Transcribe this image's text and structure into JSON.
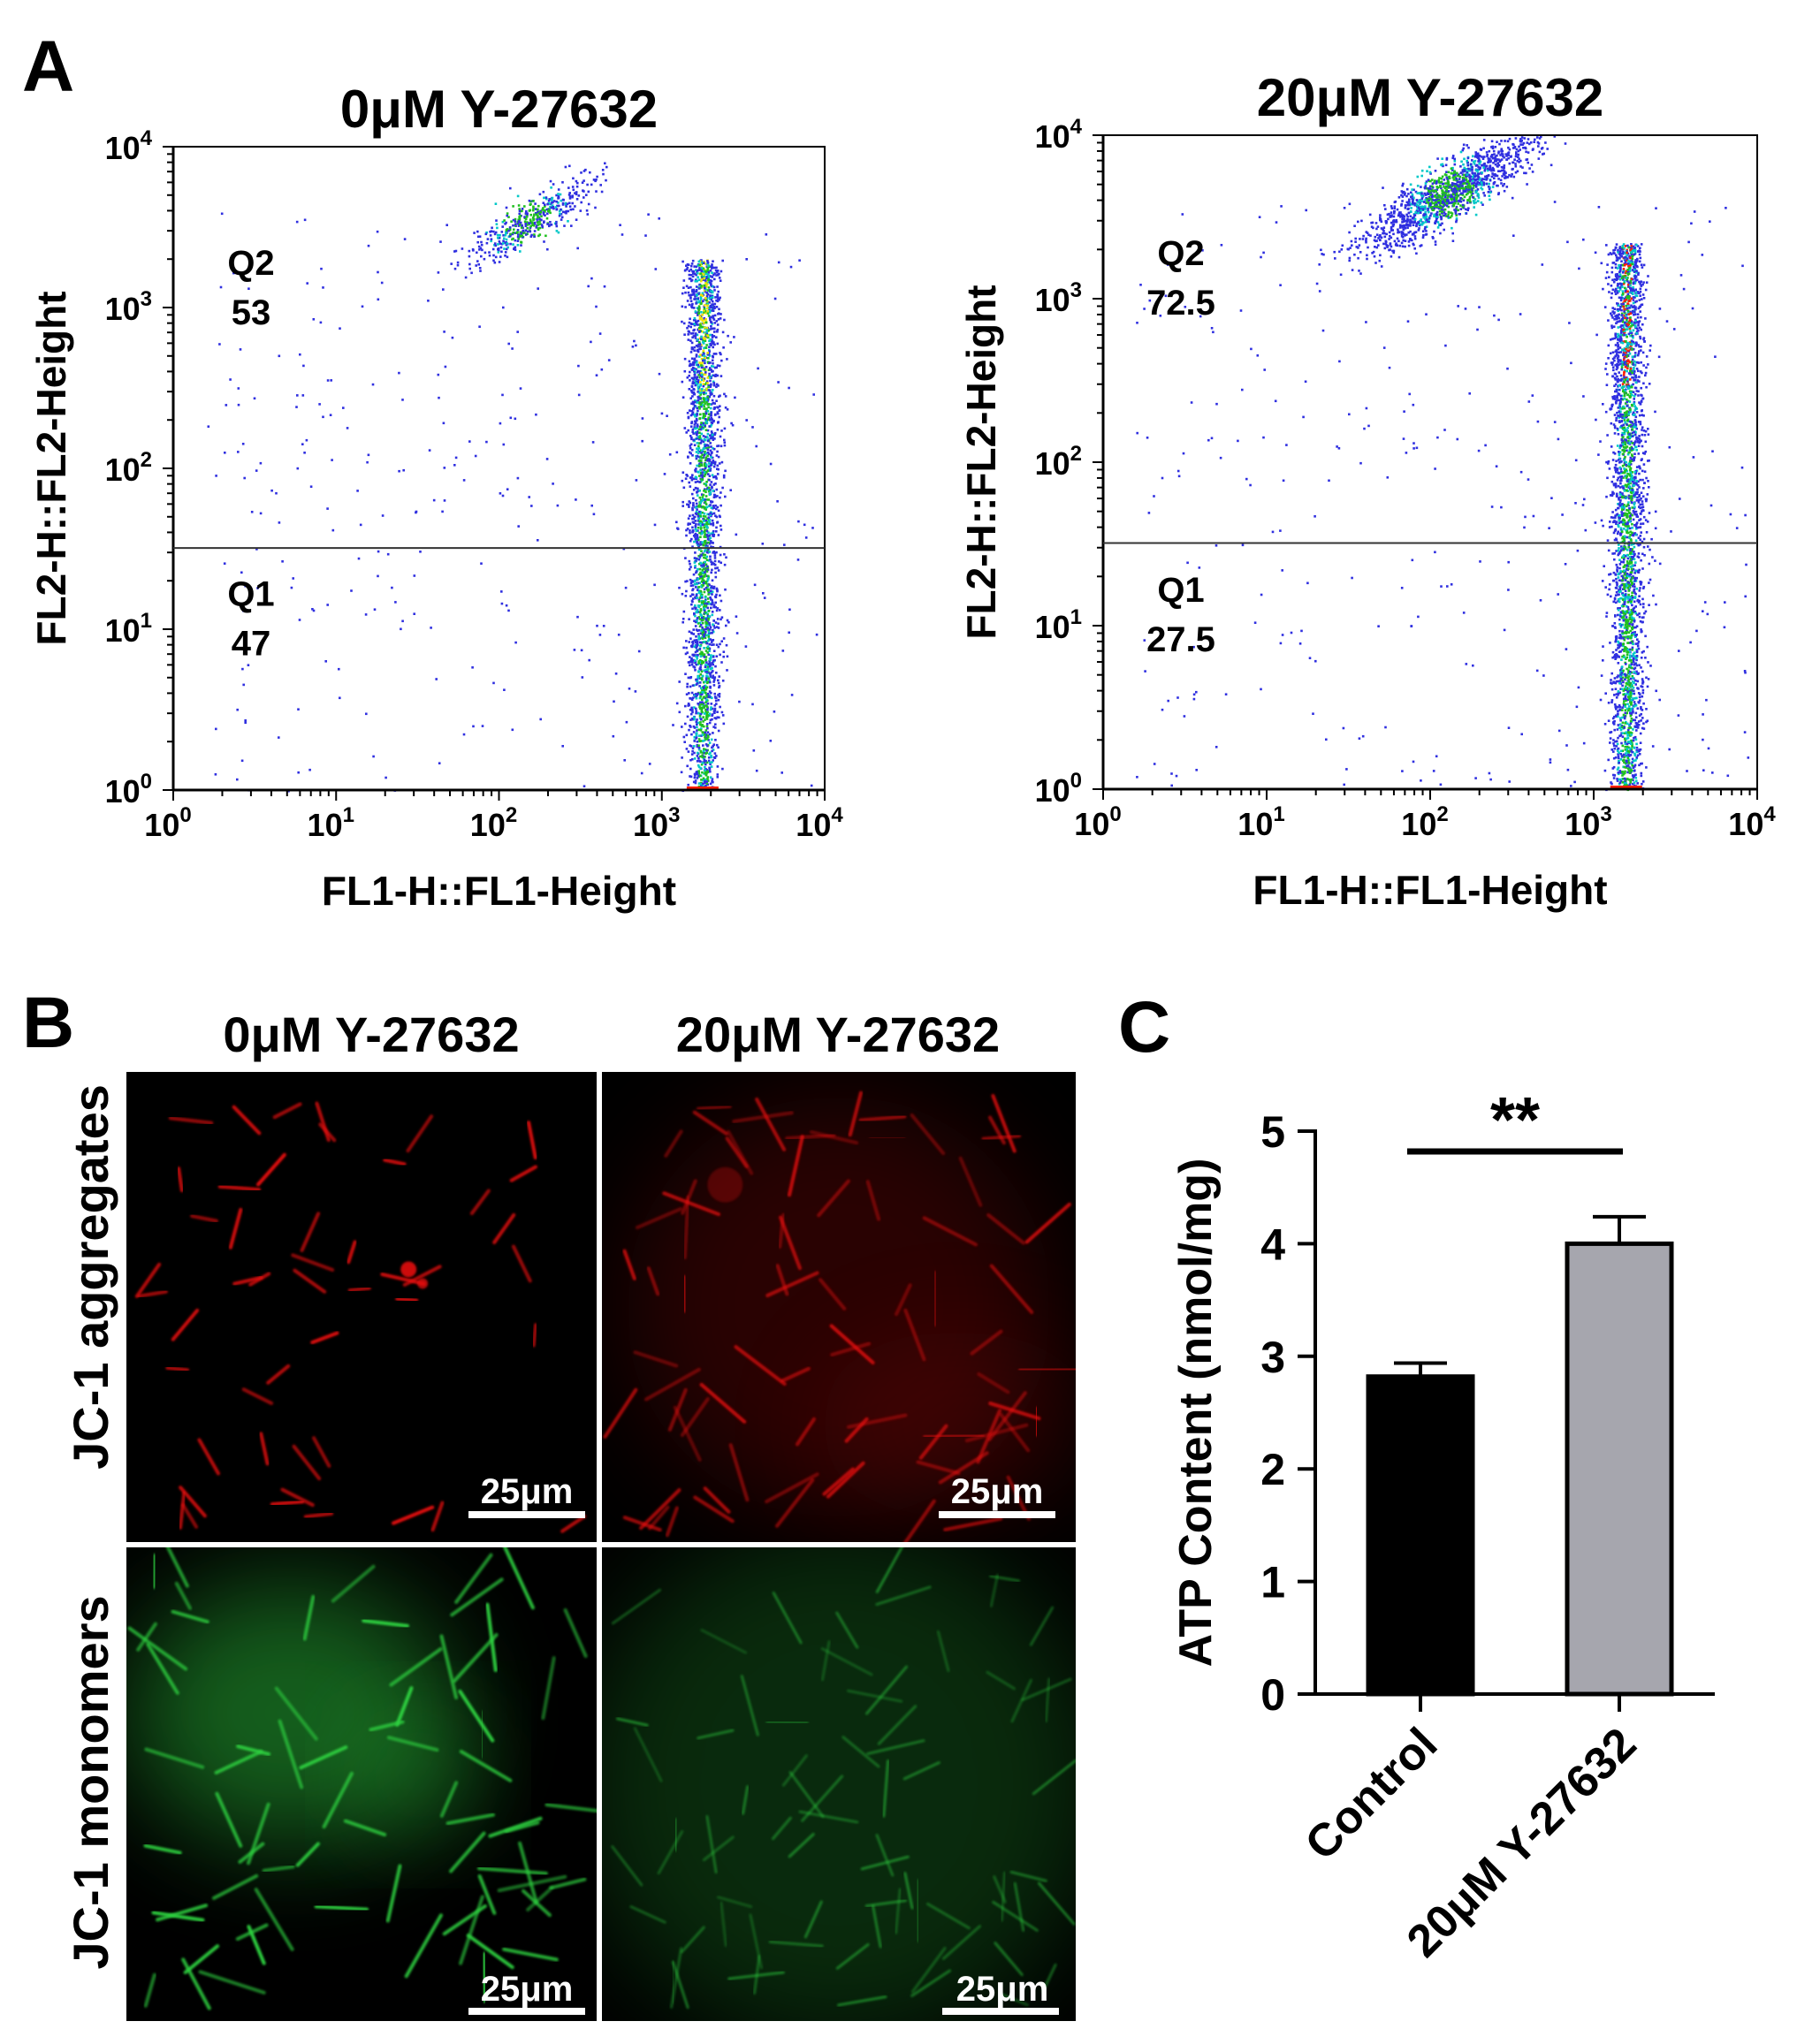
{
  "panels": {
    "a": "A",
    "b": "B",
    "c": "C"
  },
  "colors": {
    "dot_low": "#2f2fe0",
    "dot_mid": "#00c8c8",
    "dot_dense": "#20c020",
    "dot_peak": "#f0e000",
    "dot_max": "#ff2000",
    "bar_control": "#000000",
    "bar_treated": "#a6a6ae",
    "red_channel": "#e41010",
    "green_channel": "#2fd040"
  },
  "chart_data": [
    {
      "type": "scatter",
      "panel": "A",
      "title": "0μM Y-27632",
      "xlabel": "FL1-H::FL1-Height",
      "ylabel": "FL2-H::FL2-Height",
      "scale": "log",
      "xlim": [
        1,
        10000
      ],
      "ylim": [
        1,
        10000
      ],
      "x_ticks": [
        {
          "base": "10",
          "exp": "0"
        },
        {
          "base": "10",
          "exp": "1"
        },
        {
          "base": "10",
          "exp": "2"
        },
        {
          "base": "10",
          "exp": "3"
        },
        {
          "base": "10",
          "exp": "4"
        }
      ],
      "y_ticks": [
        {
          "base": "10",
          "exp": "0"
        },
        {
          "base": "10",
          "exp": "1"
        },
        {
          "base": "10",
          "exp": "2"
        },
        {
          "base": "10",
          "exp": "3"
        },
        {
          "base": "10",
          "exp": "4"
        }
      ],
      "gate_y": 32,
      "quadrants": [
        {
          "name": "Q2",
          "value": "53"
        },
        {
          "name": "Q1",
          "value": "47"
        }
      ],
      "populations": [
        {
          "x_center": 1780,
          "x_spread": 0.05,
          "y_min": 1,
          "y_max": 2000,
          "count": 2600
        },
        {
          "x_center": 150,
          "x_spread": 0.2,
          "y_center": 3500,
          "y_spread": 0.16,
          "count": 450
        }
      ]
    },
    {
      "type": "scatter",
      "panel": "A",
      "title": "20μM Y-27632",
      "xlabel": "FL1-H::FL1-Height",
      "ylabel": "FL2-H::FL2-Height",
      "scale": "log",
      "xlim": [
        1,
        10000
      ],
      "ylim": [
        1,
        10000
      ],
      "x_ticks": [
        {
          "base": "10",
          "exp": "0"
        },
        {
          "base": "10",
          "exp": "1"
        },
        {
          "base": "10",
          "exp": "2"
        },
        {
          "base": "10",
          "exp": "3"
        },
        {
          "base": "10",
          "exp": "4"
        }
      ],
      "y_ticks": [
        {
          "base": "10",
          "exp": "0"
        },
        {
          "base": "10",
          "exp": "1"
        },
        {
          "base": "10",
          "exp": "2"
        },
        {
          "base": "10",
          "exp": "3"
        },
        {
          "base": "10",
          "exp": "4"
        }
      ],
      "gate_y": 32,
      "quadrants": [
        {
          "name": "Q2",
          "value": "72.5"
        },
        {
          "name": "Q1",
          "value": "27.5"
        }
      ],
      "populations": [
        {
          "x_center": 1580,
          "x_spread": 0.05,
          "y_min": 1,
          "y_max": 2200,
          "count": 2800
        },
        {
          "x_center": 130,
          "x_spread": 0.26,
          "y_center": 4500,
          "y_spread": 0.2,
          "count": 1400
        }
      ]
    },
    {
      "type": "bar",
      "panel": "C",
      "title": "",
      "xlabel": "",
      "ylabel": "ATP Content (nmol/mg)",
      "ylim": [
        0,
        5
      ],
      "yticks": [
        0,
        1,
        2,
        3,
        4,
        5
      ],
      "categories": [
        "Control",
        "20μM Y-27632"
      ],
      "values": [
        2.82,
        4.0
      ],
      "errors": [
        0.12,
        0.24
      ],
      "significance": "**"
    }
  ],
  "micrographs": {
    "col_headers": [
      "0μM Y-27632",
      "20μM Y-27632"
    ],
    "row_labels": [
      "JC-1 aggregates",
      "JC-1 monomers"
    ],
    "scale_bar": "25μm"
  }
}
